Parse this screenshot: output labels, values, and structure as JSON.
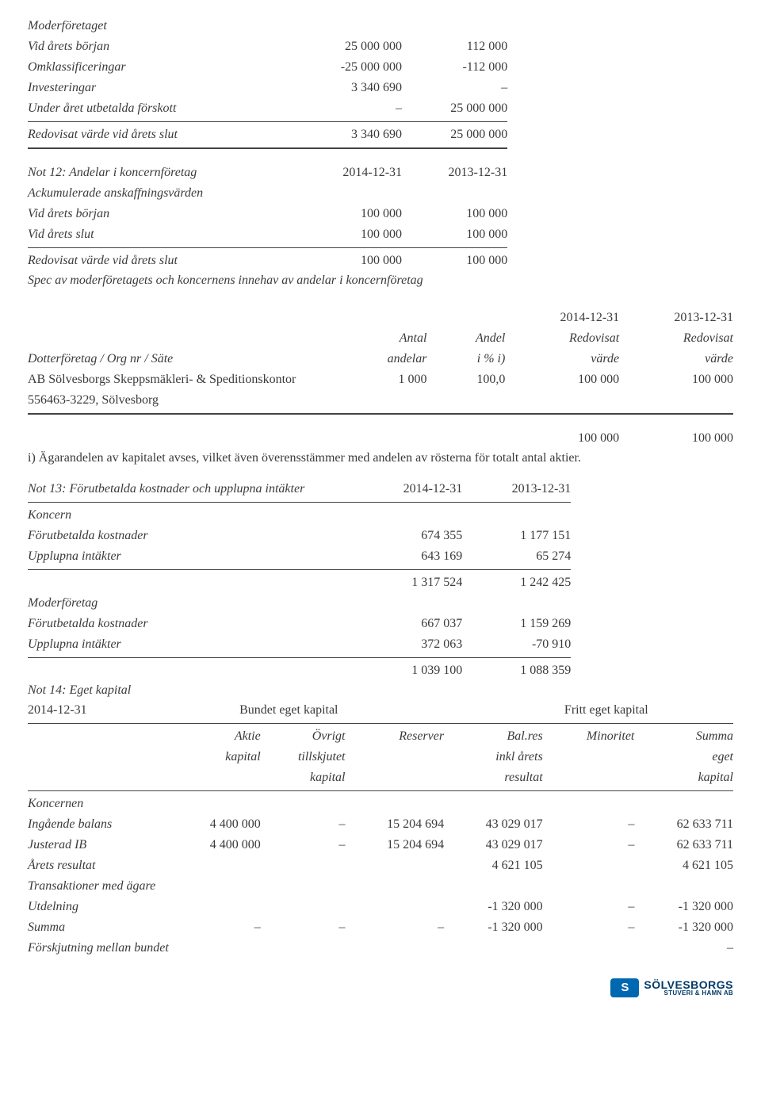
{
  "t1": {
    "title": "Moderföretaget",
    "rows": [
      {
        "l": "Vid årets början",
        "a": "25 000 000",
        "b": "112 000"
      },
      {
        "l": "Omklassificeringar",
        "a": "-25 000 000",
        "b": "-112 000"
      },
      {
        "l": "Investeringar",
        "a": "3 340 690",
        "b": "–"
      },
      {
        "l": "Under året utbetalda förskott",
        "a": "–",
        "b": "25 000 000"
      }
    ],
    "sum": {
      "l": "Redovisat värde vid årets slut",
      "a": "3 340 690",
      "b": "25 000 000"
    }
  },
  "t2": {
    "head": {
      "l": "Not 12: Andelar i koncernföretag",
      "a": "2014-12-31",
      "b": "2013-12-31"
    },
    "sub": "Ackumulerade anskaffningsvärden",
    "rows": [
      {
        "l": "Vid årets början",
        "a": "100 000",
        "b": "100 000"
      },
      {
        "l": "Vid årets slut",
        "a": "100 000",
        "b": "100 000"
      }
    ],
    "sum": {
      "l": "Redovisat värde vid årets slut",
      "a": "100 000",
      "b": "100 000"
    },
    "note": "Spec av moderföretagets och koncernens innehav av andelar i koncernföretag"
  },
  "t3": {
    "h1": {
      "c3": "2014-12-31",
      "c4": "2013-12-31"
    },
    "h2": {
      "c1": "Antal",
      "c2": "Andel",
      "c3": "Redovisat",
      "c4": "Redovisat"
    },
    "h3": {
      "c0": "Dotterföretag / Org nr / Säte",
      "c1": "andelar",
      "c2": "i % i)",
      "c3": "värde",
      "c4": "värde"
    },
    "row": {
      "c0": "AB Sölvesborgs Skeppsmäkleri- & Speditionskontor",
      "c1": "1 000",
      "c2": "100,0",
      "c3": "100 000",
      "c4": "100 000"
    },
    "row2": "556463-3229, Sölvesborg",
    "tot": {
      "c3": "100 000",
      "c4": "100 000"
    },
    "foot": "i) Ägarandelen av kapitalet avses, vilket även överensstämmer med andelen av rösterna för totalt antal aktier."
  },
  "t4": {
    "head": {
      "l": "Not 13: Förutbetalda kostnader och upplupna intäkter",
      "a": "2014-12-31",
      "b": "2013-12-31"
    },
    "g1": "Koncern",
    "g1rows": [
      {
        "l": "Förutbetalda kostnader",
        "a": "674 355",
        "b": "1 177 151"
      },
      {
        "l": "Upplupna intäkter",
        "a": "643 169",
        "b": "65 274"
      }
    ],
    "g1sum": {
      "a": "1 317 524",
      "b": "1 242 425"
    },
    "g2": "Moderföretag",
    "g2rows": [
      {
        "l": "Förutbetalda kostnader",
        "a": "667 037",
        "b": "1 159 269"
      },
      {
        "l": "Upplupna intäkter",
        "a": "372 063",
        "b": "-70 910"
      }
    ],
    "g2sum": {
      "a": "1 039 100",
      "b": "1 088 359"
    }
  },
  "t5": {
    "title": "Not 14: Eget kapital",
    "date": "2014-12-31",
    "grp1": "Bundet eget kapital",
    "grp2": "Fritt eget kapital",
    "h1": {
      "c1": "Aktie",
      "c2": "Övrigt",
      "c3": "Reserver",
      "c4": "Bal.res",
      "c5": "Minoritet",
      "c6": "Summa"
    },
    "h2": {
      "c1": "kapital",
      "c2": "tillskjutet",
      "c4": "inkl årets",
      "c6": "eget"
    },
    "h3": {
      "c2": "kapital",
      "c4": "resultat",
      "c6": "kapital"
    },
    "sub": "Koncernen",
    "rows": [
      {
        "l": "Ingående balans",
        "c1": "4 400 000",
        "c2": "–",
        "c3": "15 204 694",
        "c4": "43 029 017",
        "c5": "–",
        "c6": "62 633 711"
      },
      {
        "l": "Justerad IB",
        "c1": "4 400 000",
        "c2": "–",
        "c3": "15 204 694",
        "c4": "43 029 017",
        "c5": "–",
        "c6": "62 633 711"
      },
      {
        "l": "Årets resultat",
        "c1": "",
        "c2": "",
        "c3": "",
        "c4": "4 621 105",
        "c5": "",
        "c6": "4 621 105"
      },
      {
        "l": "Transaktioner med ägare",
        "c1": "",
        "c2": "",
        "c3": "",
        "c4": "",
        "c5": "",
        "c6": ""
      },
      {
        "l": "Utdelning",
        "c1": "",
        "c2": "",
        "c3": "",
        "c4": "-1 320 000",
        "c5": "–",
        "c6": "-1 320 000"
      },
      {
        "l": "Summa",
        "c1": "–",
        "c2": "–",
        "c3": "–",
        "c4": "-1 320 000",
        "c5": "–",
        "c6": "-1 320 000"
      },
      {
        "l": "Förskjutning mellan bundet",
        "c1": "",
        "c2": "",
        "c3": "",
        "c4": "",
        "c5": "",
        "c6": "–"
      }
    ]
  },
  "logo": {
    "brand": "SÖLVESBORGS",
    "sub": "STUVERI & HAMN AB"
  }
}
